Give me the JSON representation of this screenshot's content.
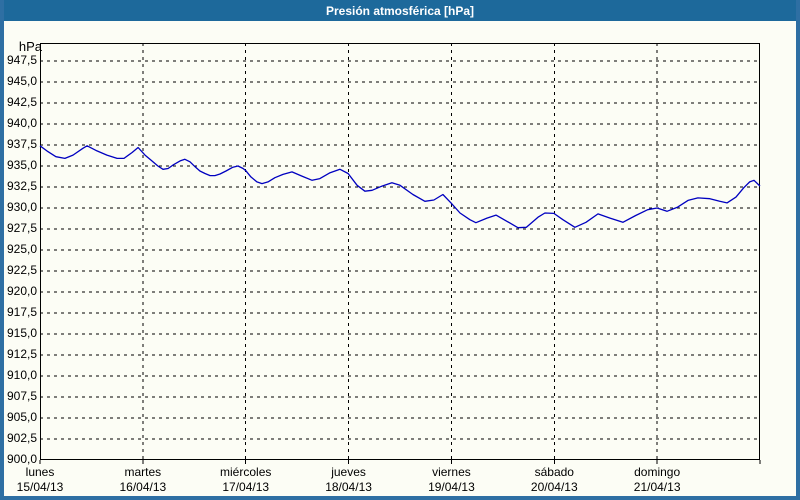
{
  "window": {
    "title": "Presión atmosférica [hPa]"
  },
  "chart_data": {
    "type": "line",
    "title": "Presión atmosférica [hPa]",
    "ylabel": "hPa",
    "xlabel": "",
    "grid": "dashed",
    "legend": "none",
    "ylim": [
      900,
      949.64
    ],
    "ytick_step": 2.5,
    "yticks": [
      {
        "value": 947.5,
        "label": "947,5"
      },
      {
        "value": 945.0,
        "label": "945,0"
      },
      {
        "value": 942.5,
        "label": "942,5"
      },
      {
        "value": 940.0,
        "label": "940,0"
      },
      {
        "value": 937.5,
        "label": "937,5"
      },
      {
        "value": 935.0,
        "label": "935,0"
      },
      {
        "value": 932.5,
        "label": "932,5"
      },
      {
        "value": 930.0,
        "label": "930,0"
      },
      {
        "value": 927.5,
        "label": "927,5"
      },
      {
        "value": 925.0,
        "label": "925,0"
      },
      {
        "value": 922.5,
        "label": "922,5"
      },
      {
        "value": 920.0,
        "label": "920,0"
      },
      {
        "value": 917.5,
        "label": "917,5"
      },
      {
        "value": 915.0,
        "label": "915,0"
      },
      {
        "value": 912.5,
        "label": "912,5"
      },
      {
        "value": 910.0,
        "label": "910,0"
      },
      {
        "value": 907.5,
        "label": "907,5"
      },
      {
        "value": 905.0,
        "label": "905,0"
      },
      {
        "value": 902.5,
        "label": "902,5"
      },
      {
        "value": 900.0,
        "label": "900,0"
      }
    ],
    "x_unit": "hours",
    "xlim": [
      0,
      168
    ],
    "xgrid_hours": [
      24,
      48,
      72,
      96,
      120,
      144
    ],
    "xtick_hours": [
      0,
      24,
      48,
      72,
      96,
      120,
      144,
      168
    ],
    "day_labels": [
      {
        "hour": 0,
        "name": "lunes",
        "date": "15/04/13"
      },
      {
        "hour": 24,
        "name": "martes",
        "date": "16/04/13"
      },
      {
        "hour": 48,
        "name": "miércoles",
        "date": "17/04/13"
      },
      {
        "hour": 72,
        "name": "jueves",
        "date": "18/04/13"
      },
      {
        "hour": 96,
        "name": "viernes",
        "date": "19/04/13"
      },
      {
        "hour": 120,
        "name": "sábado",
        "date": "20/04/13"
      },
      {
        "hour": 144,
        "name": "domingo",
        "date": "21/04/13"
      }
    ],
    "series": [
      {
        "name": "presión atmosférica",
        "unit": "hPa",
        "color": "#0000c0",
        "points": [
          [
            0,
            937.4
          ],
          [
            1.6,
            936.8
          ],
          [
            3.7,
            936.1
          ],
          [
            5.8,
            935.9
          ],
          [
            7.7,
            936.3
          ],
          [
            10,
            937.1
          ],
          [
            11,
            937.4
          ],
          [
            13.3,
            936.8
          ],
          [
            15.6,
            936.3
          ],
          [
            18,
            935.9
          ],
          [
            19.6,
            935.9
          ],
          [
            21.5,
            936.6
          ],
          [
            22.9,
            937.2
          ],
          [
            24.5,
            936.3
          ],
          [
            25.9,
            935.7
          ],
          [
            27.5,
            935.0
          ],
          [
            28.7,
            934.6
          ],
          [
            29.9,
            934.7
          ],
          [
            31,
            935.1
          ],
          [
            32.7,
            935.6
          ],
          [
            33.8,
            935.8
          ],
          [
            35,
            935.5
          ],
          [
            36.2,
            934.9
          ],
          [
            37.3,
            934.4
          ],
          [
            38.5,
            934.1
          ],
          [
            39.7,
            933.85
          ],
          [
            40.8,
            933.85
          ],
          [
            42,
            934.05
          ],
          [
            43.4,
            934.4
          ],
          [
            45,
            934.85
          ],
          [
            46.2,
            935.0
          ],
          [
            47.4,
            934.7
          ],
          [
            48,
            934.45
          ],
          [
            49.2,
            933.7
          ],
          [
            50.6,
            933.1
          ],
          [
            51.8,
            932.9
          ],
          [
            53.2,
            933.1
          ],
          [
            54.8,
            933.6
          ],
          [
            56.7,
            934.0
          ],
          [
            58.8,
            934.3
          ],
          [
            61.1,
            933.8
          ],
          [
            63.5,
            933.3
          ],
          [
            65.3,
            933.5
          ],
          [
            67.7,
            934.2
          ],
          [
            70,
            934.6
          ],
          [
            71.9,
            934.1
          ],
          [
            74,
            932.7
          ],
          [
            75.8,
            932.0
          ],
          [
            77.5,
            932.1
          ],
          [
            79.8,
            932.6
          ],
          [
            82.1,
            933.0
          ],
          [
            84,
            932.7
          ],
          [
            87,
            931.6
          ],
          [
            89.8,
            930.8
          ],
          [
            91.9,
            930.95
          ],
          [
            94,
            931.6
          ],
          [
            95.9,
            930.6
          ],
          [
            98,
            929.4
          ],
          [
            100.3,
            928.6
          ],
          [
            101.7,
            928.25
          ],
          [
            104.3,
            928.8
          ],
          [
            106.4,
            929.15
          ],
          [
            109,
            928.4
          ],
          [
            111.5,
            927.65
          ],
          [
            113.5,
            927.7
          ],
          [
            116.2,
            928.9
          ],
          [
            117.8,
            929.4
          ],
          [
            119.9,
            929.35
          ],
          [
            122,
            928.6
          ],
          [
            124.8,
            927.7
          ],
          [
            127.4,
            928.3
          ],
          [
            130.2,
            929.3
          ],
          [
            133,
            928.8
          ],
          [
            136,
            928.3
          ],
          [
            139,
            929.1
          ],
          [
            141.8,
            929.8
          ],
          [
            144,
            930.0
          ],
          [
            146.3,
            929.6
          ],
          [
            148.8,
            930.1
          ],
          [
            151.2,
            930.9
          ],
          [
            153.5,
            931.2
          ],
          [
            156.3,
            931.1
          ],
          [
            158.6,
            930.8
          ],
          [
            160.3,
            930.6
          ],
          [
            162.4,
            931.3
          ],
          [
            164.2,
            932.4
          ],
          [
            165.6,
            933.1
          ],
          [
            166.6,
            933.3
          ],
          [
            168,
            932.6
          ]
        ]
      }
    ]
  }
}
